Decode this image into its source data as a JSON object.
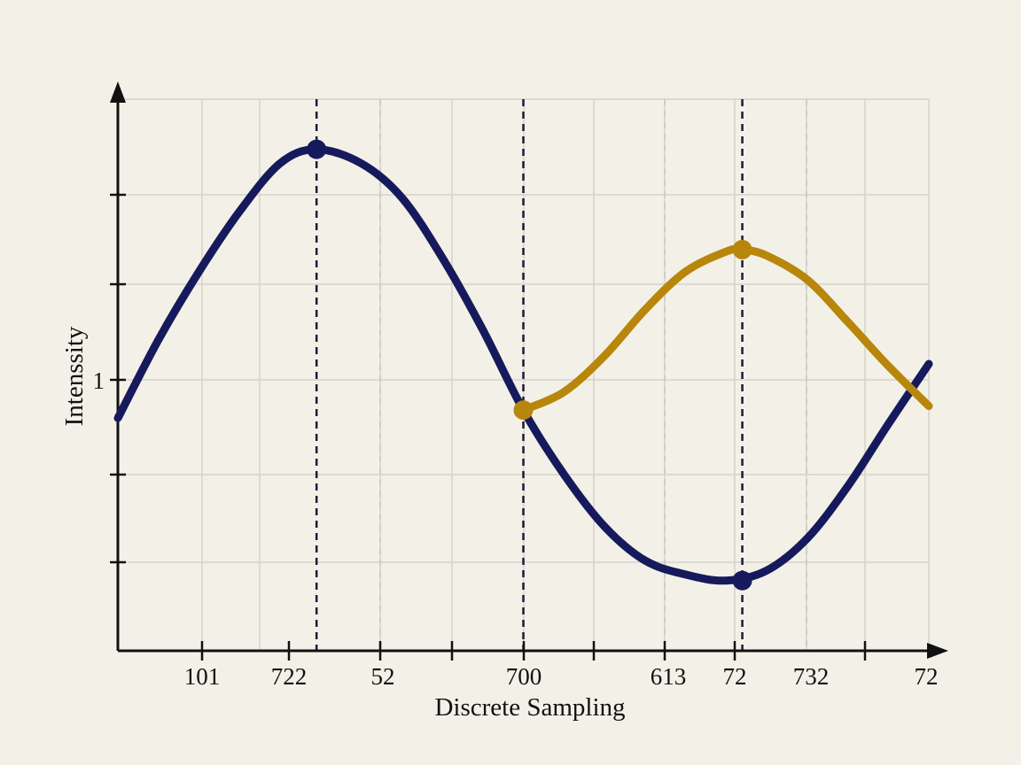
{
  "chart_data": {
    "type": "line",
    "title": "",
    "xlabel": "Discrete Sampling",
    "ylabel": "Intenssity",
    "x_tick_labels": [
      "101",
      "722",
      "52",
      "700",
      "613",
      "72",
      "732",
      "72"
    ],
    "y_tick_labels": [
      "1"
    ],
    "xlim": [
      0,
      10
    ],
    "ylim": [
      -0.5,
      2.25
    ],
    "grid": true,
    "legend": "none",
    "series": [
      {
        "color": "#161a5c",
        "x": [
          0,
          0.5,
          1,
          1.5,
          2,
          2.45,
          3,
          3.5,
          4,
          4.5,
          5,
          5.5,
          6,
          6.5,
          7,
          7.5,
          8,
          8.5,
          9,
          9.5,
          10
        ],
        "y": [
          0.66,
          1.05,
          1.39,
          1.69,
          1.93,
          2.0,
          1.93,
          1.76,
          1.46,
          1.1,
          0.7,
          0.38,
          0.12,
          -0.05,
          -0.12,
          -0.15,
          -0.1,
          0.06,
          0.32,
          0.63,
          0.93
        ],
        "markers": [
          {
            "x": 2.45,
            "y": 2.0
          },
          {
            "x": 7.7,
            "y": -0.15
          }
        ]
      },
      {
        "color": "#b8860b",
        "x": [
          5,
          5.5,
          6,
          6.5,
          7,
          7.5,
          7.7,
          8,
          8.5,
          9,
          9.5,
          10
        ],
        "y": [
          0.7,
          0.79,
          0.97,
          1.2,
          1.39,
          1.49,
          1.5,
          1.47,
          1.35,
          1.14,
          0.92,
          0.72
        ],
        "markers": [
          {
            "x": 5,
            "y": 0.7
          },
          {
            "x": 7.7,
            "y": 1.5
          }
        ]
      }
    ],
    "reference_lines": [
      2.45,
      5,
      7.7
    ]
  }
}
